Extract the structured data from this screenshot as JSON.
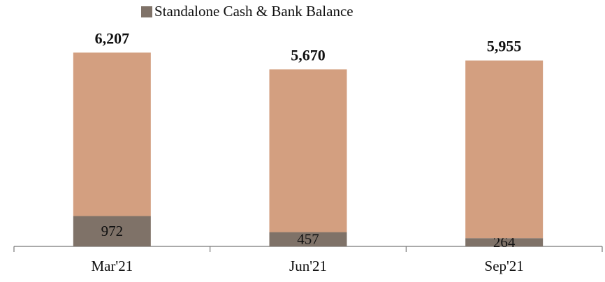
{
  "chart_data": {
    "type": "stacked_bar",
    "categories": [
      "Mar'21",
      "Jun'21",
      "Sep'21"
    ],
    "series": [
      {
        "name": "Standalone Cash & Bank Balance",
        "color": "#7f7268",
        "values": [
          972,
          457,
          264
        ]
      },
      {
        "color": "#d39f80",
        "values": [
          5235,
          5213,
          5691
        ]
      }
    ],
    "totals": [
      6207,
      5670,
      5955
    ],
    "total_labels": [
      "6,207",
      "5,670",
      "5,955"
    ],
    "ylim": [
      0,
      7400
    ]
  }
}
